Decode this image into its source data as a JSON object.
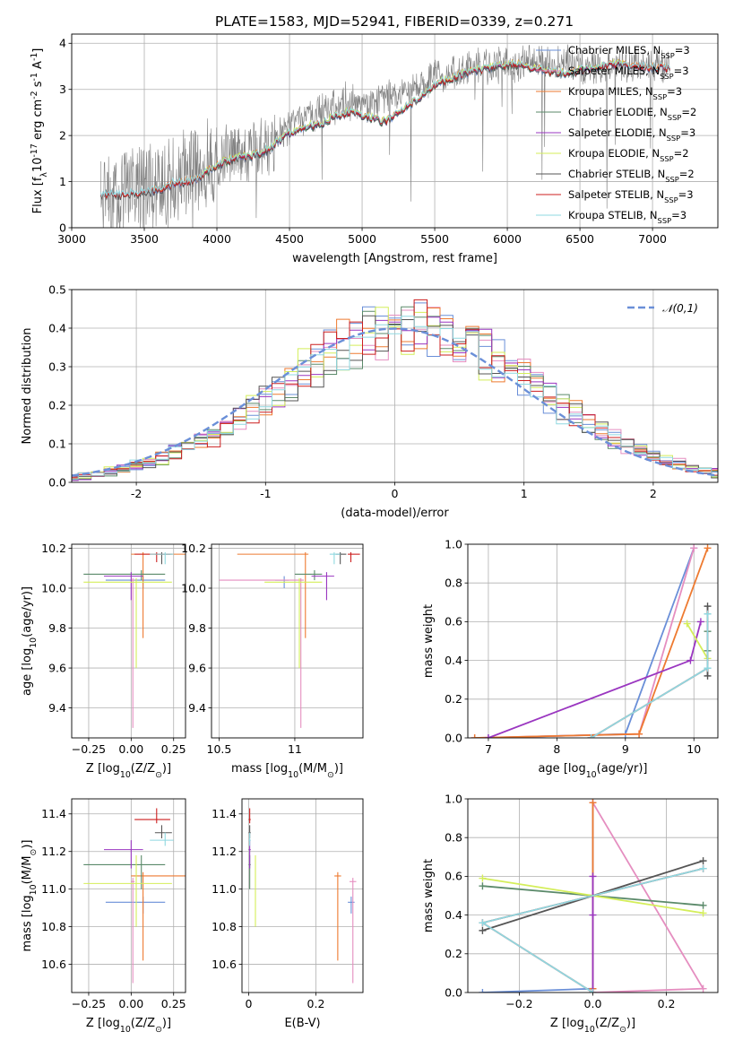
{
  "figure_title": "PLATE=1583, MJD=52941, FIBERID=0339, z=0.271",
  "colors": {
    "Chabrier MILES": "#6a8fd8",
    "Salpeter MILES": "#e58ec0",
    "Kroupa MILES": "#ee7a30",
    "Chabrier ELODIE": "#5b8a6a",
    "Salpeter ELODIE": "#9a36c0",
    "Kroupa ELODIE": "#d4ee5a",
    "Chabrier STELIB": "#555555",
    "Salpeter STELIB": "#cc1f1f",
    "Kroupa STELIB": "#8fd8e0",
    "data": "#808080",
    "normal": "#6a8fd8"
  },
  "chart_data": [
    {
      "id": "spectrum",
      "type": "line",
      "title": "PLATE=1583, MJD=52941, FIBERID=0339, z=0.271",
      "xlabel": "wavelength [Angstrom, rest frame]",
      "ylabel": "Flux [f$_\\lambda$10$^{-17}$ erg cm$^{-2}$ s$^{-1}$ A$^{-1}$]",
      "xlim": [
        3000,
        7450
      ],
      "ylim": [
        0,
        4.2
      ],
      "xticks": [
        3000,
        3500,
        4000,
        4500,
        5000,
        5500,
        6000,
        6500,
        7000
      ],
      "yticks": [
        0,
        1,
        2,
        3,
        4
      ],
      "legend_position": "top-right",
      "legend": [
        {
          "label": "Chabrier MILES, N$_{SSP}$=3",
          "color": "#6a8fd8"
        },
        {
          "label": "Salpeter MILES, N$_{SSP}$=3",
          "color": "#e58ec0"
        },
        {
          "label": "Kroupa MILES, N$_{SSP}$=3",
          "color": "#ee7a30"
        },
        {
          "label": "Chabrier ELODIE, N$_{SSP}$=2",
          "color": "#5b8a6a"
        },
        {
          "label": "Salpeter ELODIE, N$_{SSP}$=3",
          "color": "#9a36c0"
        },
        {
          "label": "Kroupa ELODIE, N$_{SSP}$=2",
          "color": "#d4ee5a"
        },
        {
          "label": "Chabrier STELIB, N$_{SSP}$=2",
          "color": "#555555"
        },
        {
          "label": "Salpeter STELIB, N$_{SSP}$=3",
          "color": "#cc1f1f"
        },
        {
          "label": "Kroupa STELIB, N$_{SSP}$=3",
          "color": "#8fd8e0"
        }
      ],
      "data_series": {
        "name": "data",
        "color": "#808080",
        "x_range": [
          3200,
          7120
        ],
        "continuum": [
          [
            3200,
            0.72
          ],
          [
            3600,
            0.9
          ],
          [
            4000,
            1.5
          ],
          [
            4300,
            1.75
          ],
          [
            4600,
            2.35
          ],
          [
            4900,
            2.75
          ],
          [
            5000,
            2.65
          ],
          [
            5200,
            2.85
          ],
          [
            5500,
            3.25
          ],
          [
            5800,
            3.5
          ],
          [
            6200,
            3.6
          ],
          [
            6600,
            3.5
          ],
          [
            7000,
            3.55
          ],
          [
            7120,
            3.5
          ]
        ]
      },
      "model_series": [
        {
          "name": "Chabrier MILES",
          "color": "#6a8fd8",
          "x_range": [
            3540,
            7120
          ]
        },
        {
          "name": "Salpeter MILES",
          "color": "#e58ec0",
          "x_range": [
            3540,
            7120
          ]
        },
        {
          "name": "Kroupa MILES",
          "color": "#ee7a30",
          "x_range": [
            3540,
            7120
          ]
        },
        {
          "name": "Chabrier ELODIE",
          "color": "#5b8a6a",
          "x_range": [
            3900,
            6800
          ]
        },
        {
          "name": "Salpeter ELODIE",
          "color": "#9a36c0",
          "x_range": [
            3900,
            6800
          ]
        },
        {
          "name": "Kroupa ELODIE",
          "color": "#d4ee5a",
          "x_range": [
            3900,
            6800
          ]
        },
        {
          "name": "Chabrier STELIB",
          "color": "#555555",
          "x_range": [
            3200,
            7120
          ]
        },
        {
          "name": "Salpeter STELIB",
          "color": "#cc1f1f",
          "x_range": [
            3200,
            7120
          ]
        },
        {
          "name": "Kroupa STELIB",
          "color": "#8fd8e0",
          "x_range": [
            3200,
            7120
          ]
        }
      ],
      "model_continuum": [
        [
          3200,
          0.7
        ],
        [
          3500,
          0.75
        ],
        [
          3600,
          0.82
        ],
        [
          3700,
          0.95
        ],
        [
          3850,
          1.05
        ],
        [
          3950,
          1.25
        ],
        [
          4100,
          1.5
        ],
        [
          4300,
          1.6
        ],
        [
          4500,
          2.05
        ],
        [
          4700,
          2.25
        ],
        [
          4900,
          2.5
        ],
        [
          5000,
          2.45
        ],
        [
          5150,
          2.3
        ],
        [
          5300,
          2.6
        ],
        [
          5500,
          3.1
        ],
        [
          5700,
          3.35
        ],
        [
          5900,
          3.5
        ],
        [
          6100,
          3.55
        ],
        [
          6300,
          3.35
        ],
        [
          6500,
          3.4
        ],
        [
          6700,
          3.55
        ],
        [
          6900,
          3.5
        ],
        [
          7120,
          3.45
        ]
      ]
    },
    {
      "id": "residuals",
      "type": "line",
      "xlabel": "(data-model)/error",
      "ylabel": "Normed distribution",
      "xlim": [
        -2.5,
        2.5
      ],
      "ylim": [
        0,
        0.5
      ],
      "xticks": [
        -2,
        -1,
        0,
        1,
        2
      ],
      "yticks": [
        0.0,
        0.1,
        0.2,
        0.3,
        0.4,
        0.5
      ],
      "legend_position": "top-right",
      "legend": [
        {
          "label": "$\\mathcal{N}(0,1)$",
          "color": "#6a8fd8",
          "style": "dashed"
        }
      ],
      "bin_width": 0.1
    },
    {
      "id": "age-vs-Z",
      "type": "scatter",
      "xlabel": "Z [log$_{10}$(Z/Z$_\\odot$)]",
      "ylabel": "age  [log$_{10}$(age/yr)]",
      "xlim": [
        -0.35,
        0.32
      ],
      "ylim": [
        9.25,
        10.22
      ],
      "xticks": [
        -0.25,
        0.0,
        0.25
      ],
      "xticklabels": [
        "−0.25",
        "0.00",
        "0.25"
      ],
      "yticks": [
        9.4,
        9.6,
        9.8,
        10.0,
        10.2
      ]
    },
    {
      "id": "age-vs-mass",
      "type": "scatter",
      "xlabel": "mass [log$_{10}$(M/M$_\\odot$)]",
      "xlim": [
        10.45,
        11.45
      ],
      "ylim": [
        9.25,
        10.22
      ],
      "xticks": [
        10.5,
        11.0
      ],
      "yticks": [
        9.4,
        9.6,
        9.8,
        10.0,
        10.2
      ]
    },
    {
      "id": "mw-vs-age",
      "type": "line",
      "xlabel": "age  [log$_{10}$(age/yr)]",
      "ylabel": "mass weight",
      "xlim": [
        6.7,
        10.35
      ],
      "ylim": [
        0,
        1
      ],
      "xticks": [
        7,
        8,
        9,
        10
      ],
      "yticks": [
        0.0,
        0.2,
        0.4,
        0.6,
        0.8,
        1.0
      ]
    },
    {
      "id": "mass-vs-Z",
      "type": "scatter",
      "xlabel": "Z [log$_{10}$(Z/Z$_\\odot$)]",
      "ylabel": "mass [log$_{10}$(M/M$_\\odot$)]",
      "xlim": [
        -0.35,
        0.32
      ],
      "ylim": [
        10.45,
        11.48
      ],
      "xticks": [
        -0.25,
        0.0,
        0.25
      ],
      "xticklabels": [
        "−0.25",
        "0.00",
        "0.25"
      ],
      "yticks": [
        10.6,
        10.8,
        11.0,
        11.2,
        11.4
      ]
    },
    {
      "id": "mass-vs-ebv",
      "type": "scatter",
      "xlabel": "E(B-V)",
      "xlim": [
        -0.02,
        0.34
      ],
      "ylim": [
        10.45,
        11.48
      ],
      "xticks": [
        0.0,
        0.2
      ],
      "yticks": [
        10.6,
        10.8,
        11.0,
        11.2,
        11.4
      ]
    },
    {
      "id": "mw-vs-Z",
      "type": "line",
      "xlabel": "Z [log$_{10}$(Z/Z$_\\odot$)]",
      "ylabel": "mass weight",
      "xlim": [
        -0.34,
        0.34
      ],
      "ylim": [
        0,
        1
      ],
      "xticks": [
        -0.2,
        0.0,
        0.2
      ],
      "xticklabels": [
        "−0.2",
        "0.0",
        "0.2"
      ],
      "yticks": [
        0.0,
        0.2,
        0.4,
        0.6,
        0.8,
        1.0
      ]
    }
  ],
  "fits": [
    {
      "name": "Chabrier MILES",
      "color": "#6a8fd8",
      "Z": 0.07,
      "Zerr": [
        0.22,
        0.13
      ],
      "age": 10.04,
      "ageerr": [
        0.04,
        0.02
      ],
      "mass": 10.93,
      "masserr": [
        0.06,
        0.03
      ],
      "ebv": 0.305,
      "ebverr": [
        0.01,
        0.01
      ]
    },
    {
      "name": "Salpeter MILES",
      "color": "#e58ec0",
      "Z": 0.01,
      "Zerr": [
        0.01,
        0.01
      ],
      "age": 10.04,
      "ageerr": [
        0.74,
        0.01
      ],
      "mass": 11.04,
      "masserr": [
        0.54,
        0.02
      ],
      "ebv": 0.31,
      "ebverr": [
        0.01,
        0.01
      ]
    },
    {
      "name": "Kroupa MILES",
      "color": "#ee7a30",
      "Z": 0.07,
      "Zerr": [
        0.07,
        0.25
      ],
      "age": 10.17,
      "ageerr": [
        0.42,
        0.01
      ],
      "mass": 11.07,
      "masserr": [
        0.45,
        0.02
      ],
      "ebv": 0.265,
      "ebverr": [
        0.01,
        0.01
      ]
    },
    {
      "name": "Chabrier ELODIE",
      "color": "#5b8a6a",
      "Z": 0.06,
      "Zerr": [
        0.34,
        0.14
      ],
      "age": 10.07,
      "ageerr": [
        0.03,
        0.02
      ],
      "mass": 11.13,
      "masserr": [
        0.13,
        0.05
      ],
      "ebv": 0.003,
      "ebverr": [
        0.003,
        0.003
      ]
    },
    {
      "name": "Salpeter ELODIE",
      "color": "#9a36c0",
      "Z": 0.0,
      "Zerr": [
        0.16,
        0.07
      ],
      "age": 10.06,
      "ageerr": [
        0.12,
        0.02
      ],
      "mass": 11.21,
      "masserr": [
        0.1,
        0.05
      ],
      "ebv": 0.003,
      "ebverr": [
        0.003,
        0.003
      ]
    },
    {
      "name": "Kroupa ELODIE",
      "color": "#d4ee5a",
      "Z": 0.03,
      "Zerr": [
        0.31,
        0.21
      ],
      "age": 10.03,
      "ageerr": [
        0.43,
        0.02
      ],
      "mass": 11.03,
      "masserr": [
        0.23,
        0.15
      ],
      "ebv": 0.02,
      "ebverr": [
        0.001,
        0.001
      ]
    },
    {
      "name": "Chabrier STELIB",
      "color": "#555555",
      "Z": 0.18,
      "Zerr": [
        0.04,
        0.06
      ],
      "age": 10.17,
      "ageerr": [
        0.05,
        0.01
      ],
      "mass": 11.3,
      "masserr": [
        0.03,
        0.04
      ],
      "ebv": 0.003,
      "ebverr": [
        0.003,
        0.003
      ]
    },
    {
      "name": "Salpeter STELIB",
      "color": "#cc1f1f",
      "Z": 0.15,
      "Zerr": [
        0.13,
        0.08
      ],
      "age": 10.17,
      "ageerr": [
        0.04,
        0.01
      ],
      "mass": 11.37,
      "masserr": [
        0.02,
        0.06
      ],
      "ebv": 0.003,
      "ebverr": [
        0.003,
        0.003
      ]
    },
    {
      "name": "Kroupa STELIB",
      "color": "#8fd8e0",
      "Z": 0.2,
      "Zerr": [
        0.09,
        0.05
      ],
      "age": 10.17,
      "ageerr": [
        0.05,
        0.01
      ],
      "mass": 11.26,
      "masserr": [
        0.03,
        0.04
      ],
      "ebv": 0.003,
      "ebverr": [
        0.003,
        0.003
      ]
    }
  ],
  "mass_weights": [
    {
      "name": "Chabrier MILES",
      "color": "#6a8fd8",
      "points": [
        [
          7.0,
          -0.3,
          0.0
        ],
        [
          9.0,
          0.0,
          0.02
        ],
        [
          10.0,
          0.0,
          0.98
        ]
      ]
    },
    {
      "name": "Salpeter MILES",
      "color": "#e58ec0",
      "points": [
        [
          6.8,
          0.0,
          0.0
        ],
        [
          9.2,
          0.3,
          0.02
        ],
        [
          10.0,
          0.0,
          0.98
        ]
      ]
    },
    {
      "name": "Kroupa MILES",
      "color": "#ee7a30",
      "points": [
        [
          6.8,
          0.0,
          0.0
        ],
        [
          9.2,
          0.0,
          0.02
        ],
        [
          10.2,
          0.0,
          0.98
        ]
      ]
    },
    {
      "name": "Chabrier ELODIE",
      "color": "#5b8a6a",
      "points": [
        [
          10.2,
          -0.3,
          0.55
        ],
        [
          10.2,
          0.3,
          0.45
        ]
      ]
    },
    {
      "name": "Salpeter ELODIE",
      "color": "#9a36c0",
      "points": [
        [
          7.0,
          0.0,
          0.0
        ],
        [
          9.95,
          0.0,
          0.4
        ],
        [
          10.1,
          0.0,
          0.6
        ]
      ]
    },
    {
      "name": "Kroupa ELODIE",
      "color": "#d4ee5a",
      "points": [
        [
          9.9,
          -0.3,
          0.59
        ],
        [
          10.2,
          0.3,
          0.41
        ]
      ]
    },
    {
      "name": "Chabrier STELIB",
      "color": "#555555",
      "points": [
        [
          10.2,
          -0.3,
          0.32
        ],
        [
          10.2,
          0.3,
          0.68
        ]
      ]
    },
    {
      "name": "Salpeter STELIB",
      "color": "#cc1f1f",
      "points": [
        [
          8.5,
          0.0,
          0.0
        ],
        [
          10.2,
          -0.3,
          0.36
        ],
        [
          10.2,
          0.3,
          0.64
        ]
      ]
    },
    {
      "name": "Kroupa STELIB",
      "color": "#8fd8e0",
      "points": [
        [
          8.5,
          0.0,
          0.0
        ],
        [
          10.2,
          -0.3,
          0.36
        ],
        [
          10.2,
          0.3,
          0.64
        ]
      ]
    }
  ]
}
